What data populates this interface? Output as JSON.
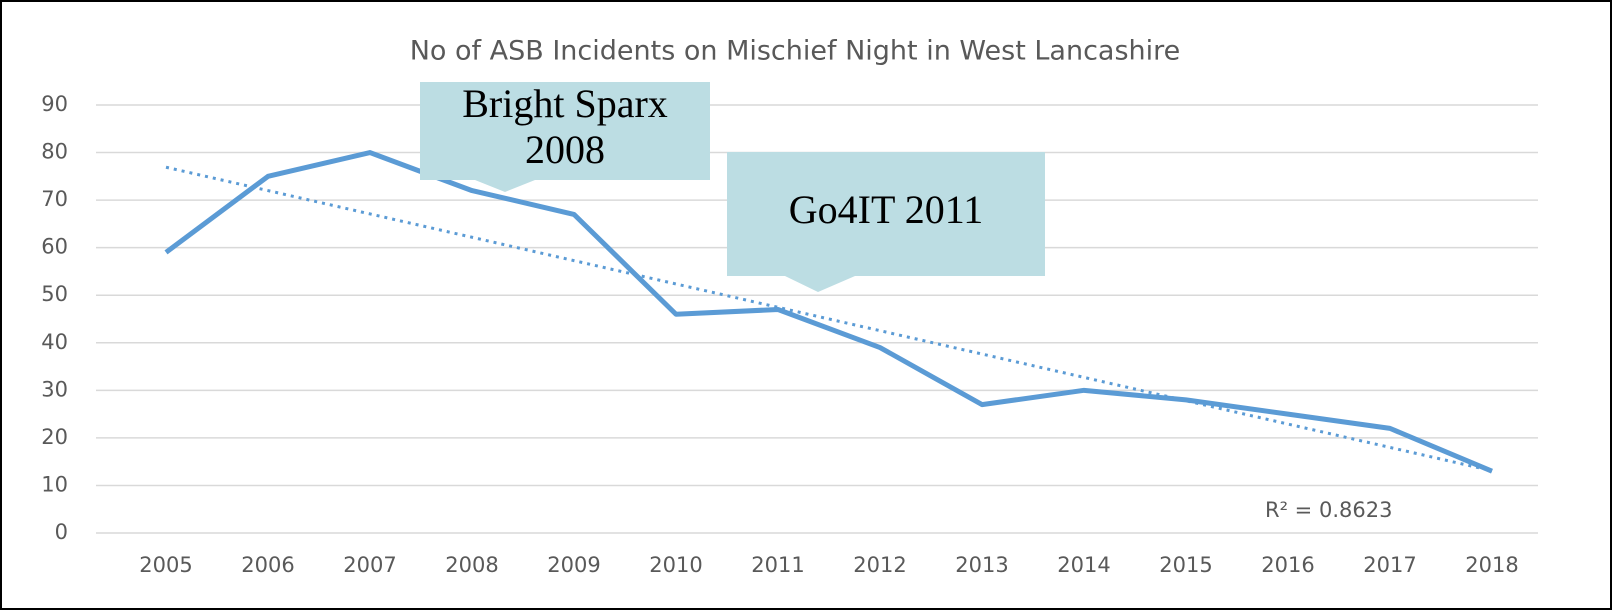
{
  "chart_data": {
    "type": "line",
    "title": "No of ASB Incidents on Mischief Night in West Lancashire",
    "categories": [
      "2005",
      "2006",
      "2007",
      "2008",
      "2009",
      "2010",
      "2011",
      "2012",
      "2013",
      "2014",
      "2015",
      "2016",
      "2017",
      "2018"
    ],
    "series": [
      {
        "color": "#5b9bd5",
        "values": [
          59,
          75,
          80,
          72,
          67,
          46,
          47,
          39,
          27,
          30,
          28,
          25,
          22,
          13
        ]
      }
    ],
    "trendline": {
      "type": "linear",
      "color": "#5b9bd5",
      "label": "R² = 0.8623"
    },
    "ylim": [
      0,
      90
    ],
    "yticks": [
      0,
      10,
      20,
      30,
      40,
      50,
      60,
      70,
      80,
      90
    ],
    "grid": true,
    "annotations": [
      {
        "lines": [
          "Bright Sparx",
          "2008"
        ]
      },
      {
        "lines": [
          "Go4IT 2011"
        ]
      }
    ]
  }
}
